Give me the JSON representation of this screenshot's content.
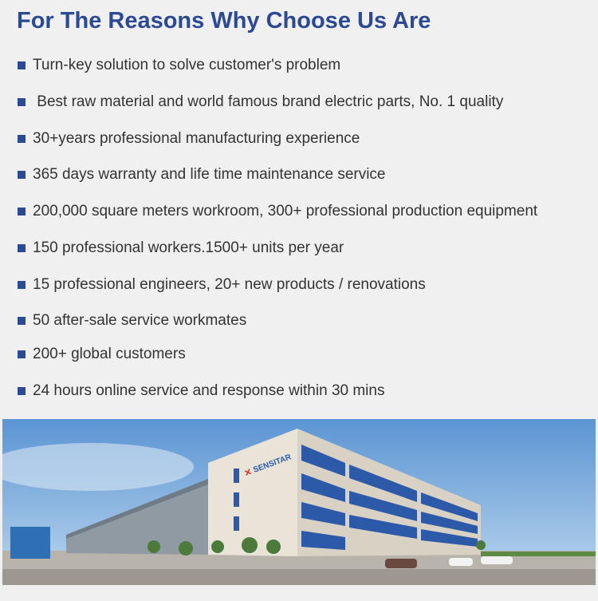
{
  "title": "For The Reasons Why Choose Us Are",
  "reasons": [
    "Turn-key solution to solve customer's problem",
    " Best raw material and world famous brand electric parts, No. 1 quality",
    "30+years professional manufacturing experience",
    "365 days warranty and life time maintenance service",
    "200,000 square meters workroom, 300+ professional production equipment",
    "150 professional workers.1500+ units per year",
    "15 professional engineers, 20+ new products / renovations",
    "50 after-sale service workmates",
    "200+ global customers",
    "24 hours online service and response within 30 mins"
  ],
  "photo": {
    "logo_text": "SENSITAR"
  },
  "colors": {
    "accent": "#2b4a93",
    "text": "#333333",
    "background": "#f0f0f0"
  }
}
